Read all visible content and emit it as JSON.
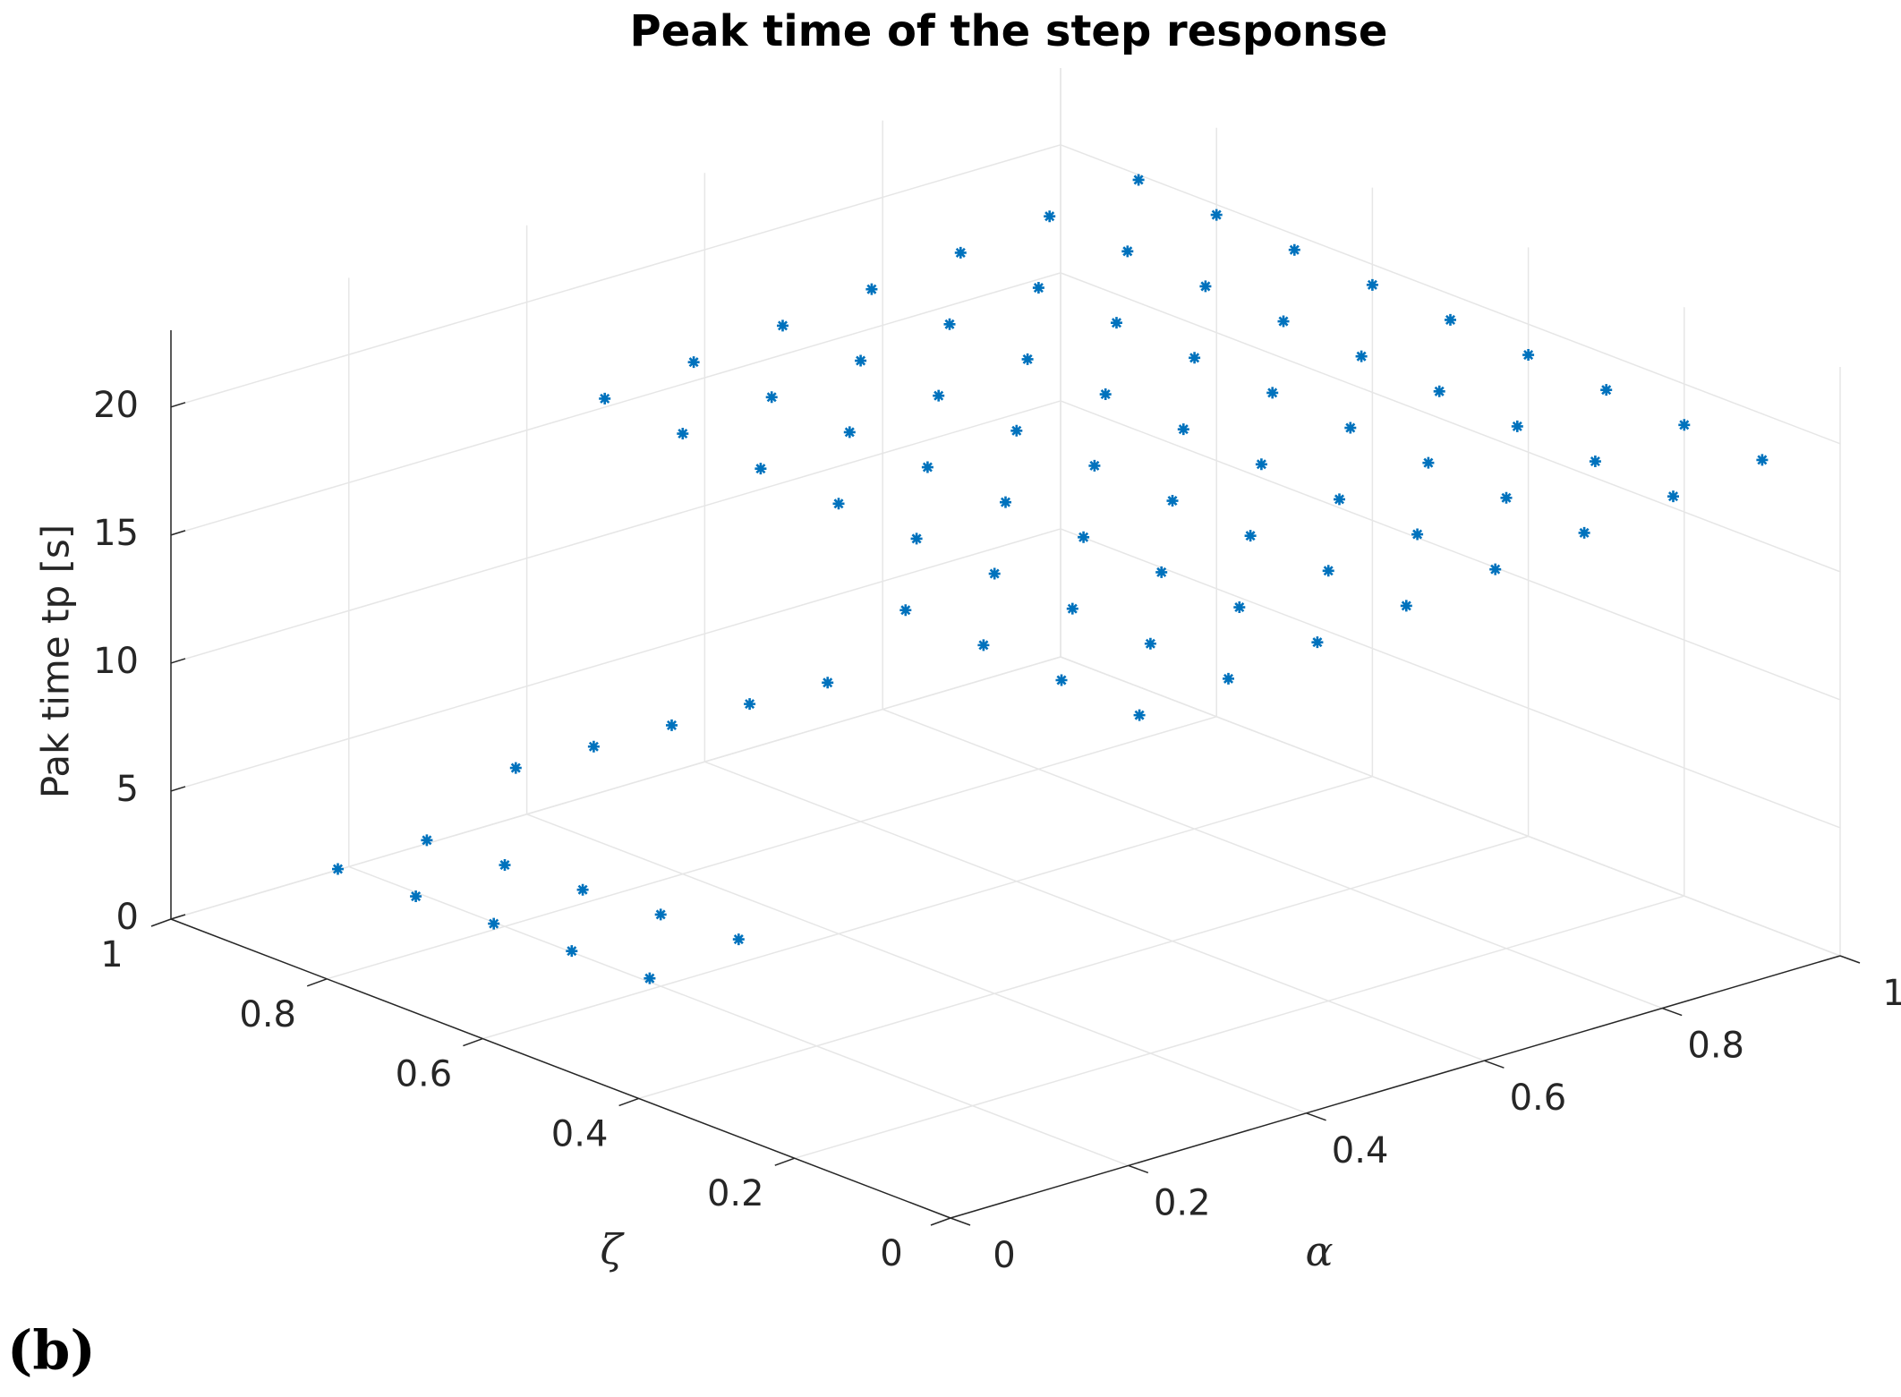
{
  "chart_data": {
    "type": "scatter3d",
    "title": "Peak time of the step response",
    "xlabel": "α",
    "ylabel": "ζ",
    "zlabel": "Pak time tp [s]",
    "panel_label": "(b)",
    "color": "#0072bd",
    "grid": true,
    "xlim": [
      0,
      1
    ],
    "ylim": [
      0,
      1
    ],
    "zlim": [
      0,
      23
    ],
    "xticks": [
      0,
      0.2,
      0.4,
      0.6,
      0.8,
      1
    ],
    "yticks": [
      0,
      0.2,
      0.4,
      0.6,
      0.8,
      1
    ],
    "zticks": [
      0,
      5,
      10,
      15,
      20
    ],
    "x": [
      0.1,
      0.1,
      0.1,
      0.1,
      0.1,
      0.2,
      0.2,
      0.2,
      0.2,
      0.2,
      0.3,
      0.3,
      0.3,
      0.3,
      0.3,
      0.3,
      0.3,
      0.3,
      0.3,
      0.4,
      0.4,
      0.4,
      0.4,
      0.4,
      0.4,
      0.4,
      0.4,
      0.4,
      0.5,
      0.5,
      0.5,
      0.5,
      0.5,
      0.5,
      0.5,
      0.5,
      0.5,
      0.6,
      0.6,
      0.6,
      0.6,
      0.6,
      0.6,
      0.6,
      0.6,
      0.6,
      0.7,
      0.7,
      0.7,
      0.7,
      0.7,
      0.7,
      0.7,
      0.7,
      0.7,
      0.8,
      0.8,
      0.8,
      0.8,
      0.8,
      0.8,
      0.8,
      0.8,
      0.8,
      0.9,
      0.9,
      0.9,
      0.9,
      0.9,
      0.9,
      0.9,
      0.9,
      0.9,
      1,
      1,
      1,
      1,
      1,
      1,
      1,
      1,
      1
    ],
    "y": [
      0.5,
      0.6,
      0.7,
      0.8,
      0.9,
      0.5,
      0.6,
      0.7,
      0.8,
      0.9,
      0.1,
      0.2,
      0.3,
      0.4,
      0.5,
      0.6,
      0.7,
      0.8,
      0.9,
      0.1,
      0.2,
      0.3,
      0.4,
      0.5,
      0.6,
      0.7,
      0.8,
      0.9,
      0.1,
      0.2,
      0.3,
      0.4,
      0.5,
      0.6,
      0.7,
      0.8,
      0.9,
      0.1,
      0.2,
      0.3,
      0.4,
      0.5,
      0.6,
      0.7,
      0.8,
      0.9,
      0.1,
      0.2,
      0.3,
      0.4,
      0.5,
      0.6,
      0.7,
      0.8,
      0.9,
      0.1,
      0.2,
      0.3,
      0.4,
      0.5,
      0.6,
      0.7,
      0.8,
      0.9,
      0.1,
      0.2,
      0.3,
      0.4,
      0.5,
      0.6,
      0.7,
      0.8,
      0.9,
      0.1,
      0.2,
      0.3,
      0.4,
      0.5,
      0.6,
      0.7,
      0.8,
      0.9
    ],
    "z": [
      2.5,
      2.4,
      2.3,
      2.2,
      2.1,
      3,
      2.8,
      2.6,
      2.4,
      2.2,
      15.4,
      15.6,
      15.8,
      16,
      12,
      10,
      8,
      6,
      4,
      15.8,
      16,
      16.2,
      16.4,
      16.6,
      16.8,
      17,
      17.2,
      17.4,
      16.2,
      16.4,
      16.6,
      16.8,
      17,
      17.2,
      17.4,
      17.6,
      17.8,
      16.6,
      16.8,
      17,
      17.2,
      17.4,
      17.6,
      17.8,
      18,
      18.2,
      17,
      17.2,
      17.4,
      17.6,
      17.8,
      18,
      18.2,
      18.4,
      18.6,
      17.4,
      17.6,
      17.8,
      18,
      18.2,
      18.4,
      18.6,
      18.8,
      19,
      17.8,
      18,
      18.2,
      18.4,
      18.6,
      18.8,
      19,
      19.2,
      19.4,
      18.2,
      18.4,
      18.6,
      18.8,
      19,
      19.2,
      19.4,
      19.6,
      19.8
    ]
  }
}
